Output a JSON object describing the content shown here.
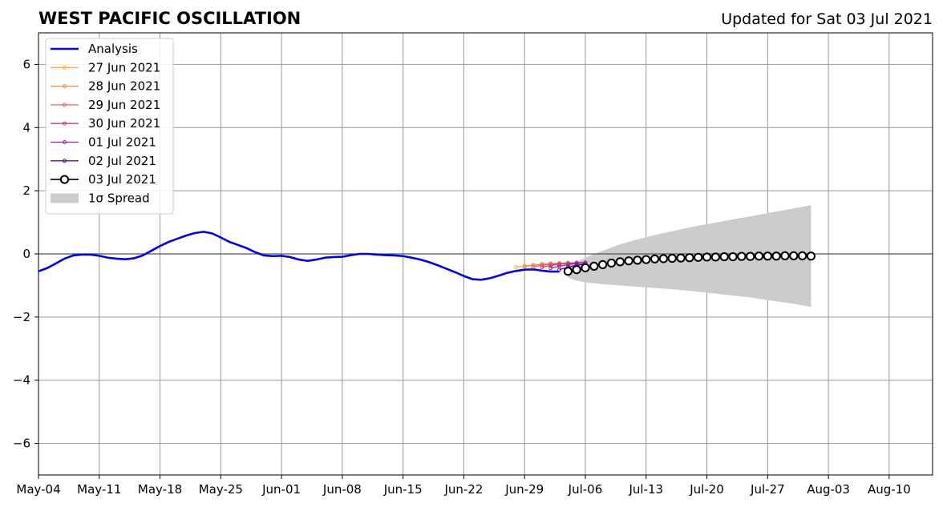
{
  "header": {
    "title": "WEST PACIFIC OSCILLATION",
    "updated": "Updated for Sat 03 Jul 2021"
  },
  "chart_data": {
    "type": "line",
    "title": "WEST PACIFIC OSCILLATION",
    "subtitle": "Updated for Sat 03 Jul 2021",
    "xlabel": "",
    "ylabel": "",
    "xlim": [
      "2021-05-04",
      "2021-08-15"
    ],
    "ylim": [
      -7,
      7
    ],
    "xticks": [
      "2021-05-04",
      "2021-05-11",
      "2021-05-18",
      "2021-05-25",
      "2021-06-01",
      "2021-06-08",
      "2021-06-15",
      "2021-06-22",
      "2021-06-29",
      "2021-07-06",
      "2021-07-13",
      "2021-07-20",
      "2021-07-27",
      "2021-08-03",
      "2021-08-10"
    ],
    "xtick_labels": [
      "May-04",
      "May-11",
      "May-18",
      "May-25",
      "Jun-01",
      "Jun-08",
      "Jun-15",
      "Jun-22",
      "Jun-29",
      "Jul-06",
      "Jul-13",
      "Jul-20",
      "Jul-27",
      "Aug-03",
      "Aug-10"
    ],
    "yticks": [
      -6,
      -4,
      -2,
      0,
      2,
      4,
      6
    ],
    "ytick_labels": [
      "−6",
      "−4",
      "−2",
      "0",
      "2",
      "4",
      "6"
    ],
    "grid": true,
    "legend_position": "top-left",
    "analysis": {
      "name": "Analysis",
      "color": "#0000ee",
      "start": "2021-05-04",
      "values": [
        -0.55,
        -0.45,
        -0.3,
        -0.15,
        -0.05,
        -0.02,
        -0.02,
        -0.06,
        -0.12,
        -0.15,
        -0.17,
        -0.14,
        -0.05,
        0.1,
        0.25,
        0.38,
        0.48,
        0.58,
        0.66,
        0.7,
        0.65,
        0.52,
        0.38,
        0.28,
        0.18,
        0.05,
        -0.05,
        -0.07,
        -0.06,
        -0.1,
        -0.18,
        -0.22,
        -0.18,
        -0.12,
        -0.1,
        -0.09,
        -0.04,
        0.0,
        0.0,
        -0.02,
        -0.04,
        -0.05,
        -0.07,
        -0.12,
        -0.18,
        -0.26,
        -0.36,
        -0.47,
        -0.58,
        -0.7,
        -0.8,
        -0.82,
        -0.77,
        -0.69,
        -0.6,
        -0.54,
        -0.5,
        -0.49,
        -0.53,
        -0.56,
        -0.56
      ]
    },
    "forecasts": [
      {
        "name": "27 Jun 2021",
        "color": "#fdb43a",
        "start": "2021-06-28",
        "values": [
          -0.42,
          -0.38,
          -0.35,
          -0.32,
          -0.3,
          -0.29,
          -0.28,
          -0.28
        ]
      },
      {
        "name": "28 Jun 2021",
        "color": "#f48a40",
        "start": "2021-06-29",
        "values": [
          -0.4,
          -0.36,
          -0.33,
          -0.31,
          -0.3,
          -0.29,
          -0.29
        ]
      },
      {
        "name": "29 Jun 2021",
        "color": "#e0646b",
        "start": "2021-06-30",
        "values": [
          -0.41,
          -0.36,
          -0.33,
          -0.31,
          -0.3,
          -0.29,
          -0.28
        ]
      },
      {
        "name": "30 Jun 2021",
        "color": "#c23f88",
        "start": "2021-07-01",
        "values": [
          -0.42,
          -0.37,
          -0.33,
          -0.3,
          -0.28,
          -0.27
        ]
      },
      {
        "name": "01 Jul 2021",
        "color": "#9326a0",
        "start": "2021-07-02",
        "values": [
          -0.45,
          -0.39,
          -0.34,
          -0.3,
          -0.28
        ]
      },
      {
        "name": "02 Jul 2021",
        "color": "#5b0c9a",
        "start": "2021-07-03",
        "values": [
          -0.5,
          -0.42,
          -0.36,
          -0.32
        ]
      },
      {
        "name": "03 Jul 2021",
        "color": "#000000",
        "start": "2021-07-04",
        "values": [
          -0.55,
          -0.5,
          -0.44,
          -0.39,
          -0.34,
          -0.29,
          -0.25,
          -0.22,
          -0.2,
          -0.18,
          -0.16,
          -0.15,
          -0.14,
          -0.13,
          -0.12,
          -0.11,
          -0.1,
          -0.1,
          -0.09,
          -0.09,
          -0.08,
          -0.08,
          -0.07,
          -0.07,
          -0.07,
          -0.06,
          -0.06,
          -0.06,
          -0.07
        ],
        "spread_upper": [
          -0.35,
          -0.25,
          -0.12,
          0.0,
          0.1,
          0.2,
          0.3,
          0.38,
          0.46,
          0.53,
          0.6,
          0.66,
          0.72,
          0.78,
          0.84,
          0.89,
          0.94,
          0.99,
          1.04,
          1.09,
          1.14,
          1.19,
          1.24,
          1.29,
          1.34,
          1.39,
          1.44,
          1.49,
          1.54
        ],
        "spread_lower": [
          -0.75,
          -0.85,
          -0.9,
          -0.93,
          -0.96,
          -0.98,
          -1.0,
          -1.02,
          -1.04,
          -1.06,
          -1.08,
          -1.1,
          -1.12,
          -1.15,
          -1.17,
          -1.2,
          -1.23,
          -1.26,
          -1.29,
          -1.32,
          -1.35,
          -1.38,
          -1.42,
          -1.46,
          -1.5,
          -1.54,
          -1.58,
          -1.63,
          -1.68
        ]
      }
    ],
    "spread_label": "1σ Spread",
    "spread_color": "#cccccc"
  }
}
